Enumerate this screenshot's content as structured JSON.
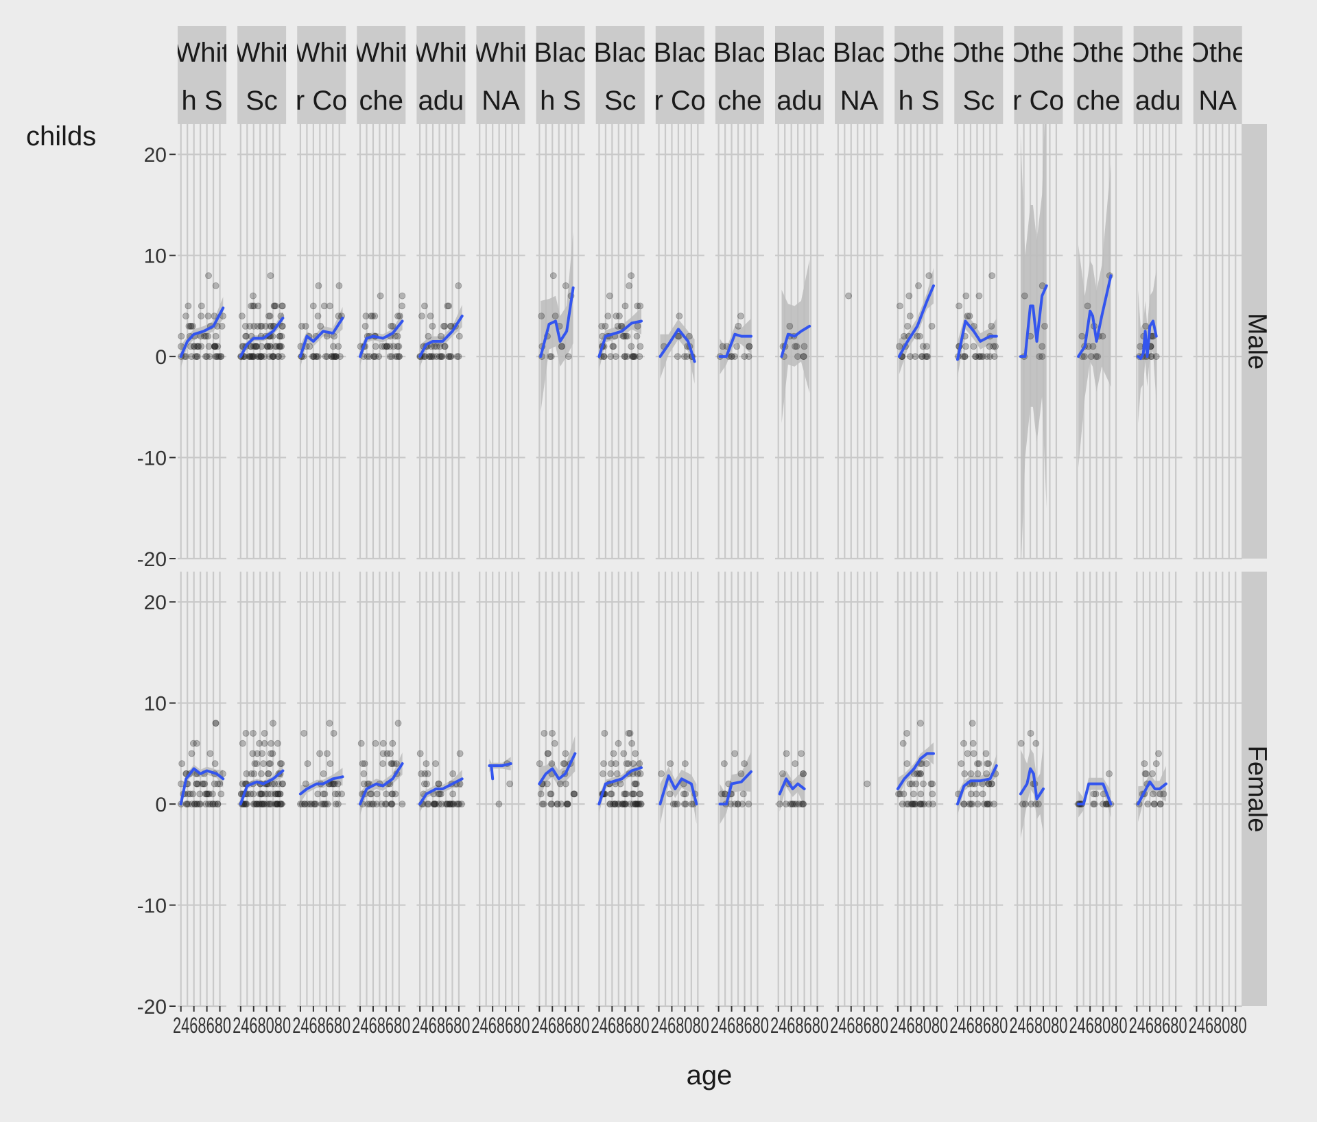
{
  "chart_data": {
    "type": "scatter",
    "overlay": "smooth line (blue) with grey confidence band",
    "xlabel": "age",
    "ylabel": "childs",
    "ylim": [
      -20,
      23
    ],
    "y_ticks": [
      -20,
      -10,
      0,
      10,
      20
    ],
    "x_ticks": [
      "20",
      "40",
      "60",
      "80"
    ],
    "grid": true,
    "layout": "facet grid: rows = sex, columns = race + degree",
    "colors": {
      "background": "#ececec",
      "strip": "#cbcbcb",
      "grid": "#c9c9c9",
      "line": "#3355ee",
      "band": "#bcbcbc",
      "points": "#222222"
    },
    "column_strips": [
      [
        "Whit",
        "h S"
      ],
      [
        "Whit",
        "Sc"
      ],
      [
        "Whit",
        "r Co"
      ],
      [
        "Whit",
        "che"
      ],
      [
        "Whit",
        "adu"
      ],
      [
        "Whit",
        "NA"
      ],
      [
        "Blac",
        "h S"
      ],
      [
        "Blac",
        "Sc"
      ],
      [
        "Blac",
        "r Co"
      ],
      [
        "Blac",
        "che"
      ],
      [
        "Blac",
        "adu"
      ],
      [
        "Blac",
        "NA"
      ],
      [
        "Othe",
        "h S"
      ],
      [
        "Othe",
        "Sc"
      ],
      [
        "Othe",
        "r Co"
      ],
      [
        "Othe",
        "che"
      ],
      [
        "Othe",
        "adu"
      ],
      [
        "Othe",
        "NA"
      ]
    ],
    "row_strips": [
      "Male",
      "Female"
    ],
    "x_tick_labels": [
      "2468680",
      "2468080",
      "2468680",
      "2468680",
      "2468680",
      "2468680",
      "2468680",
      "2468680",
      "2468080",
      "2468680",
      "2468680",
      "2468680",
      "2468080",
      "2468680",
      "2468080",
      "2468080",
      "2468680",
      "2468080"
    ],
    "panels": {
      "Male": [
        {
          "line": [
            [
              20,
              0
            ],
            [
              30,
              1.5
            ],
            [
              40,
              2.2
            ],
            [
              55,
              2.5
            ],
            [
              70,
              3
            ],
            [
              85,
              4.8
            ]
          ],
          "band_width": 0.5,
          "points": {
            "n": 55,
            "ymax": 8
          }
        },
        {
          "line": [
            [
              20,
              0
            ],
            [
              30,
              1.2
            ],
            [
              40,
              1.8
            ],
            [
              55,
              1.8
            ],
            [
              70,
              2.5
            ],
            [
              85,
              3.8
            ]
          ],
          "band_width": 0.3,
          "points": {
            "n": 90,
            "ymax": 8
          }
        },
        {
          "line": [
            [
              20,
              0
            ],
            [
              30,
              2
            ],
            [
              40,
              1.5
            ],
            [
              55,
              2.5
            ],
            [
              70,
              2.3
            ],
            [
              85,
              3.8
            ]
          ],
          "band_width": 0.5,
          "points": {
            "n": 40,
            "ymax": 7
          }
        },
        {
          "line": [
            [
              20,
              0
            ],
            [
              30,
              1.8
            ],
            [
              40,
              2
            ],
            [
              55,
              1.8
            ],
            [
              70,
              2.3
            ],
            [
              85,
              3.5
            ]
          ],
          "band_width": 0.4,
          "points": {
            "n": 45,
            "ymax": 6
          }
        },
        {
          "line": [
            [
              20,
              0
            ],
            [
              30,
              1.2
            ],
            [
              40,
              1.5
            ],
            [
              55,
              1.5
            ],
            [
              70,
              2.5
            ],
            [
              85,
              4
            ]
          ],
          "band_width": 0.5,
          "points": {
            "n": 45,
            "ymax": 7
          }
        },
        {
          "line": [],
          "points": {
            "n": 0,
            "ymax": 0
          }
        },
        {
          "line": [
            [
              22,
              0
            ],
            [
              35,
              3.2
            ],
            [
              45,
              3.5
            ],
            [
              52,
              1.5
            ],
            [
              62,
              2.5
            ],
            [
              72,
              6.8
            ]
          ],
          "band_width": 2.5,
          "points": {
            "n": 14,
            "ymax": 8
          }
        },
        {
          "line": [
            [
              20,
              0
            ],
            [
              30,
              2
            ],
            [
              40,
              2.2
            ],
            [
              55,
              2.5
            ],
            [
              70,
              3.3
            ],
            [
              85,
              3.5
            ]
          ],
          "band_width": 0.6,
          "points": {
            "n": 45,
            "ymax": 8
          }
        },
        {
          "line": [
            [
              22,
              0
            ],
            [
              35,
              1.2
            ],
            [
              50,
              2.7
            ],
            [
              65,
              1.5
            ],
            [
              75,
              -0.5
            ]
          ],
          "band_width": 1,
          "points": {
            "n": 12,
            "ymax": 4
          }
        },
        {
          "line": [
            [
              22,
              0
            ],
            [
              32,
              0
            ],
            [
              45,
              2.2
            ],
            [
              55,
              2
            ],
            [
              70,
              2
            ]
          ],
          "band_width": 0.8,
          "points": {
            "n": 14,
            "ymax": 4
          }
        },
        {
          "line": [
            [
              25,
              0
            ],
            [
              35,
              2.2
            ],
            [
              45,
              2
            ],
            [
              55,
              2.5
            ],
            [
              68,
              3
            ]
          ],
          "band_width": 3,
          "points": {
            "n": 12,
            "ymax": 3
          }
        },
        {
          "line": [],
          "points": {
            "n": 1,
            "ymax": 6
          }
        },
        {
          "line": [
            [
              22,
              0
            ],
            [
              35,
              1.5
            ],
            [
              50,
              3
            ],
            [
              65,
              5.5
            ],
            [
              75,
              7
            ]
          ],
          "band_width": 0.8,
          "points": {
            "n": 25,
            "ymax": 8
          }
        },
        {
          "line": [
            [
              20,
              -0.3
            ],
            [
              32,
              3.5
            ],
            [
              45,
              2.5
            ],
            [
              55,
              1.5
            ],
            [
              70,
              2
            ],
            [
              80,
              2
            ]
          ],
          "band_width": 0.8,
          "points": {
            "n": 30,
            "ymax": 8
          }
        },
        {
          "line": [
            [
              25,
              0
            ],
            [
              32,
              0
            ],
            [
              40,
              5
            ],
            [
              44,
              5
            ],
            [
              50,
              1.5
            ],
            [
              58,
              6
            ],
            [
              65,
              7
            ]
          ],
          "band_width": 10,
          "points": {
            "n": 8,
            "ymax": 7
          }
        },
        {
          "line": [
            [
              22,
              0
            ],
            [
              32,
              1
            ],
            [
              40,
              4.5
            ],
            [
              44,
              4
            ],
            [
              50,
              1.5
            ],
            [
              58,
              4
            ],
            [
              72,
              8
            ]
          ],
          "band_width": 5,
          "points": {
            "n": 14,
            "ymax": 8
          }
        },
        {
          "line": [
            [
              22,
              0
            ],
            [
              26,
              -0.2
            ],
            [
              30,
              0.3
            ],
            [
              33,
              2.5
            ],
            [
              36,
              0
            ],
            [
              40,
              3
            ],
            [
              45,
              3.5
            ],
            [
              50,
              2
            ]
          ],
          "band_width": 3,
          "points": {
            "n": 18,
            "ymax": 3
          }
        },
        {
          "line": [],
          "points": {
            "n": 0,
            "ymax": 0
          }
        }
      ],
      "Female": [
        {
          "line": [
            [
              20,
              0
            ],
            [
              28,
              2.5
            ],
            [
              40,
              3.5
            ],
            [
              50,
              3
            ],
            [
              60,
              3.3
            ],
            [
              75,
              3
            ],
            [
              85,
              2.5
            ]
          ],
          "band_width": 0.4,
          "points": {
            "n": 60,
            "ymax": 8
          }
        },
        {
          "line": [
            [
              20,
              0
            ],
            [
              30,
              1.8
            ],
            [
              45,
              2.2
            ],
            [
              55,
              2
            ],
            [
              70,
              2.5
            ],
            [
              85,
              3.3
            ]
          ],
          "band_width": 0.3,
          "points": {
            "n": 100,
            "ymax": 8
          }
        },
        {
          "line": [
            [
              20,
              1
            ],
            [
              30,
              1.5
            ],
            [
              45,
              2
            ],
            [
              55,
              2
            ],
            [
              70,
              2.5
            ],
            [
              85,
              2.7
            ]
          ],
          "band_width": 0.4,
          "points": {
            "n": 40,
            "ymax": 8
          }
        },
        {
          "line": [
            [
              20,
              0
            ],
            [
              30,
              1.5
            ],
            [
              45,
              2
            ],
            [
              55,
              1.8
            ],
            [
              70,
              2.5
            ],
            [
              85,
              4
            ]
          ],
          "band_width": 0.5,
          "points": {
            "n": 45,
            "ymax": 8
          }
        },
        {
          "line": [
            [
              20,
              0
            ],
            [
              30,
              1
            ],
            [
              45,
              1.5
            ],
            [
              55,
              1.5
            ],
            [
              70,
              2
            ],
            [
              85,
              2.5
            ]
          ],
          "band_width": 0.4,
          "points": {
            "n": 45,
            "ymax": 5
          }
        },
        {
          "line": [
            [
              35,
              3.8
            ],
            [
              38,
              3.8
            ],
            [
              40,
              2.5
            ],
            [
              38,
              3.8
            ],
            [
              55,
              3.8
            ],
            [
              68,
              4
            ]
          ],
          "band_width": 0.3,
          "points": {
            "n": 3,
            "ymax": 4
          }
        },
        {
          "line": [
            [
              20,
              2
            ],
            [
              30,
              3
            ],
            [
              40,
              3.5
            ],
            [
              50,
              2.5
            ],
            [
              60,
              3
            ],
            [
              75,
              5
            ]
          ],
          "band_width": 0.8,
          "points": {
            "n": 35,
            "ymax": 7
          }
        },
        {
          "line": [
            [
              20,
              0
            ],
            [
              30,
              2
            ],
            [
              45,
              2.3
            ],
            [
              55,
              2.5
            ],
            [
              70,
              3.3
            ],
            [
              85,
              3.6
            ]
          ],
          "band_width": 0.4,
          "points": {
            "n": 70,
            "ymax": 7
          }
        },
        {
          "line": [
            [
              22,
              0
            ],
            [
              35,
              2.8
            ],
            [
              45,
              1.5
            ],
            [
              55,
              2.5
            ],
            [
              70,
              2
            ],
            [
              78,
              0
            ]
          ],
          "band_width": 0.9,
          "points": {
            "n": 15,
            "ymax": 4
          }
        },
        {
          "line": [
            [
              22,
              0
            ],
            [
              32,
              0
            ],
            [
              40,
              2
            ],
            [
              55,
              2.2
            ],
            [
              70,
              3.2
            ]
          ],
          "band_width": 0.9,
          "points": {
            "n": 18,
            "ymax": 5
          }
        },
        {
          "line": [
            [
              22,
              1
            ],
            [
              32,
              2.5
            ],
            [
              42,
              1.5
            ],
            [
              50,
              2
            ],
            [
              60,
              1.5
            ]
          ],
          "band_width": 0.8,
          "points": {
            "n": 18,
            "ymax": 5
          }
        },
        {
          "line": [],
          "points": {
            "n": 1,
            "ymax": 2
          }
        },
        {
          "line": [
            [
              20,
              1.5
            ],
            [
              30,
              2.5
            ],
            [
              45,
              3.5
            ],
            [
              55,
              4.5
            ],
            [
              65,
              5
            ],
            [
              75,
              5
            ]
          ],
          "band_width": 0.5,
          "points": {
            "n": 40,
            "ymax": 8
          }
        },
        {
          "line": [
            [
              20,
              0
            ],
            [
              30,
              1.8
            ],
            [
              40,
              2.3
            ],
            [
              55,
              2.3
            ],
            [
              70,
              2.5
            ],
            [
              80,
              3.8
            ]
          ],
          "band_width": 0.5,
          "points": {
            "n": 40,
            "ymax": 8
          }
        },
        {
          "line": [
            [
              25,
              1
            ],
            [
              35,
              2
            ],
            [
              40,
              3.5
            ],
            [
              45,
              3
            ],
            [
              50,
              0.5
            ],
            [
              55,
              1
            ],
            [
              60,
              1.5
            ]
          ],
          "band_width": 2,
          "points": {
            "n": 10,
            "ymax": 7
          }
        },
        {
          "line": [
            [
              22,
              0
            ],
            [
              30,
              0
            ],
            [
              38,
              2
            ],
            [
              50,
              2
            ],
            [
              60,
              2
            ],
            [
              72,
              0
            ]
          ],
          "band_width": 0.6,
          "points": {
            "n": 18,
            "ymax": 3
          }
        },
        {
          "line": [
            [
              22,
              0
            ],
            [
              30,
              1
            ],
            [
              40,
              2.2
            ],
            [
              48,
              1.5
            ],
            [
              55,
              1.5
            ],
            [
              65,
              2
            ]
          ],
          "band_width": 0.8,
          "points": {
            "n": 18,
            "ymax": 5
          }
        },
        {
          "line": [],
          "points": {
            "n": 0,
            "ymax": 0
          }
        }
      ]
    }
  }
}
